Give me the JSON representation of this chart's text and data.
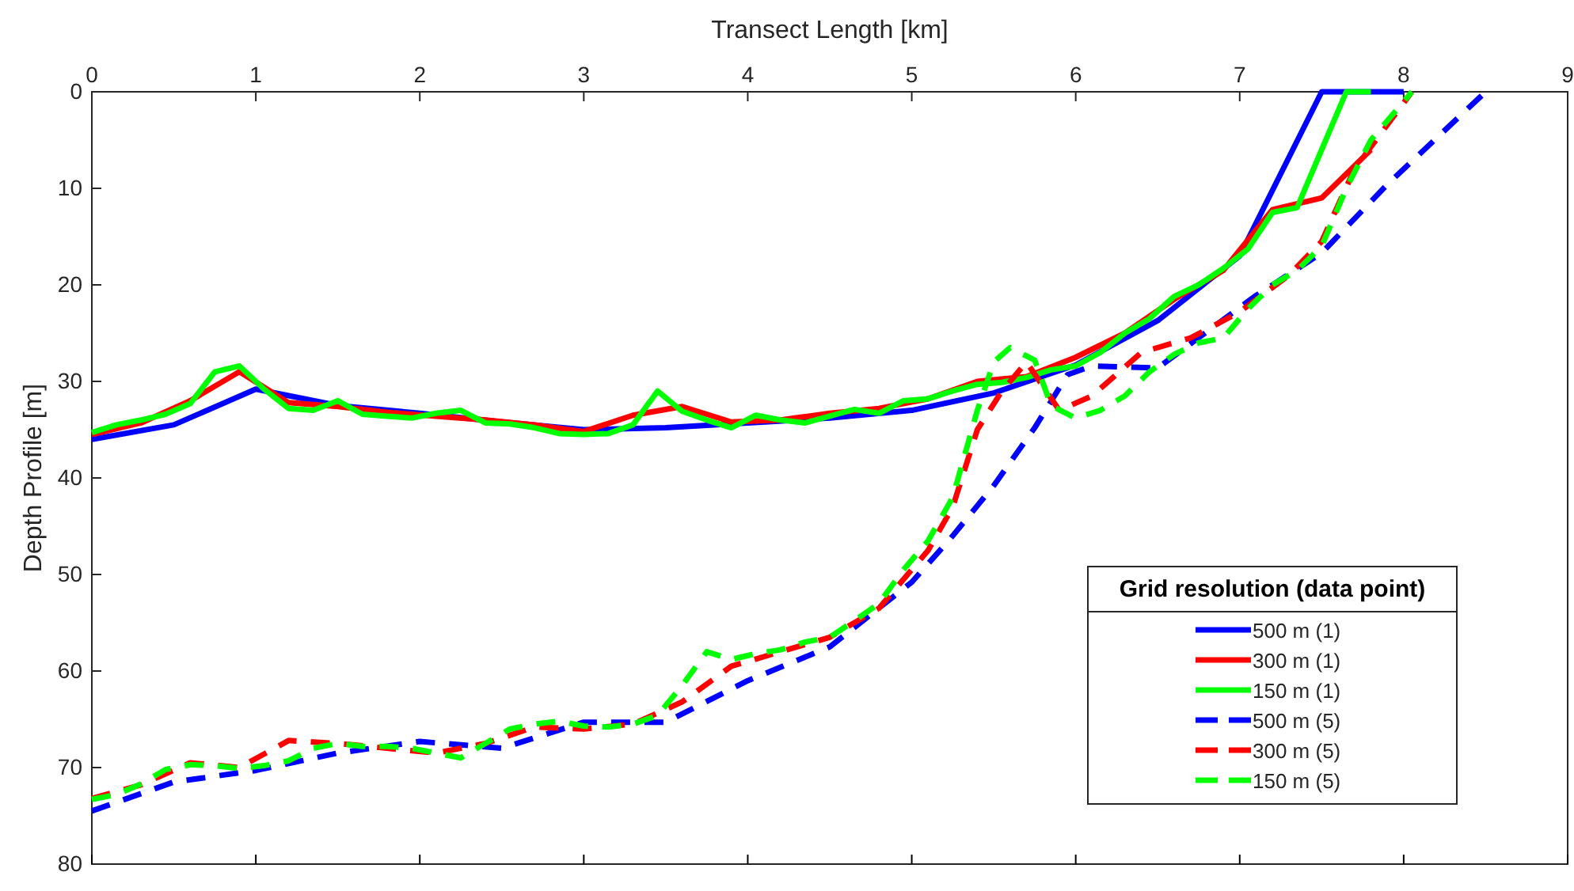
{
  "chart_data": {
    "type": "line",
    "xlabel": "Transect Length [km]",
    "ylabel": "Depth Profile [m]",
    "legend_title": "Grid resolution (data point)",
    "legend": "bottom right",
    "grid": false,
    "xlim": [
      0,
      9
    ],
    "xticks": [
      0,
      1,
      2,
      3,
      4,
      5,
      6,
      7,
      8,
      9
    ],
    "ylim": [
      80,
      0
    ],
    "yticks": [
      0,
      10,
      20,
      30,
      40,
      50,
      60,
      70,
      80
    ],
    "series": [
      {
        "name": "500 m (1)",
        "color": "#0000ff",
        "line_style": "solid",
        "x": [
          0,
          0.5,
          1,
          1.5,
          2,
          2.5,
          3,
          3.5,
          4,
          4.5,
          5,
          5.5,
          6,
          6.5,
          7,
          7.5,
          8
        ],
        "values": [
          36,
          34.5,
          30.8,
          32.5,
          33.3,
          34.2,
          35,
          34.8,
          34.3,
          33.8,
          33,
          31.2,
          28.3,
          23.7,
          17,
          0,
          0
        ]
      },
      {
        "name": "300 m (1)",
        "color": "#ff0000",
        "line_style": "solid",
        "x": [
          0,
          0.3,
          0.6,
          0.9,
          1.2,
          1.5,
          1.8,
          2.1,
          2.4,
          2.7,
          3,
          3.3,
          3.6,
          3.9,
          4.2,
          4.5,
          4.8,
          5.1,
          5.4,
          5.7,
          6,
          6.3,
          6.6,
          6.9,
          7.2,
          7.5,
          7.8
        ],
        "values": [
          35.5,
          34.3,
          32,
          29,
          32.2,
          32.6,
          33.2,
          33.6,
          34,
          34.5,
          35.2,
          33.5,
          32.6,
          34.2,
          34,
          33.3,
          32.8,
          31.8,
          30,
          29.5,
          27.5,
          25,
          21.5,
          18.5,
          12.2,
          11,
          6
        ]
      },
      {
        "name": "150 m (1)",
        "color": "#00ff00",
        "line_style": "solid",
        "x": [
          0,
          0.15,
          0.3,
          0.45,
          0.6,
          0.75,
          0.9,
          1.05,
          1.2,
          1.35,
          1.5,
          1.65,
          1.8,
          1.95,
          2.1,
          2.25,
          2.4,
          2.55,
          2.7,
          2.85,
          3,
          3.15,
          3.3,
          3.45,
          3.6,
          3.75,
          3.9,
          4.05,
          4.2,
          4.35,
          4.5,
          4.65,
          4.8,
          4.95,
          5.1,
          5.25,
          5.4,
          5.55,
          5.7,
          5.85,
          6,
          6.15,
          6.3,
          6.45,
          6.6,
          6.75,
          6.9,
          7.05,
          7.2,
          7.35,
          7.5,
          7.65,
          7.8
        ],
        "values": [
          35.3,
          34.5,
          34,
          33.4,
          32.3,
          29,
          28.4,
          30.8,
          32.8,
          33,
          32,
          33.4,
          33.6,
          33.8,
          33.3,
          33,
          34.3,
          34.4,
          34.8,
          35.4,
          35.5,
          35.4,
          34.5,
          31,
          33.1,
          34,
          34.8,
          33.5,
          34,
          34.3,
          33.6,
          32.9,
          33.3,
          32,
          31.8,
          31,
          30.3,
          30.1,
          29.6,
          28.8,
          28.4,
          27,
          25,
          23.5,
          21.2,
          20,
          18.3,
          16.3,
          12.5,
          12,
          6,
          0,
          0
        ]
      },
      {
        "name": "500 m (5)",
        "color": "#0000ff",
        "line_style": "dashed",
        "x": [
          0,
          0.5,
          1,
          1.5,
          2,
          2.5,
          3,
          3.5,
          4,
          4.5,
          5,
          5.24,
          5.5,
          5.75,
          5.95,
          6.1,
          6.5,
          7.1,
          7.5,
          7.9,
          8.5
        ],
        "values": [
          74.5,
          71.5,
          70.3,
          68.5,
          67.3,
          68,
          65.3,
          65.3,
          61,
          57.5,
          50.8,
          46.2,
          40.8,
          34.8,
          29.3,
          28.4,
          28.6,
          21.1,
          16.7,
          9.6,
          0
        ]
      },
      {
        "name": "300 m (5)",
        "color": "#ff0000",
        "line_style": "dashed",
        "x": [
          0,
          0.3,
          0.6,
          0.9,
          1.2,
          1.5,
          1.8,
          2.1,
          2.4,
          2.7,
          3,
          3.3,
          3.6,
          3.9,
          4.2,
          4.5,
          4.8,
          5.1,
          5.25,
          5.4,
          5.55,
          5.7,
          5.9,
          6.1,
          6.4,
          6.7,
          7,
          7.3,
          7.5,
          7.7,
          8.05
        ],
        "values": [
          73.2,
          71.8,
          69.5,
          70,
          67.2,
          67.5,
          68,
          68.5,
          67.5,
          65.8,
          66,
          65.5,
          63.2,
          59.5,
          58,
          56.5,
          53.5,
          47.5,
          43,
          35,
          31,
          28,
          33,
          31.5,
          27,
          25.5,
          22.8,
          19,
          15.5,
          8,
          0
        ]
      },
      {
        "name": "150 m (5)",
        "color": "#00ff00",
        "line_style": "dashed",
        "x": [
          0,
          0.15,
          0.3,
          0.45,
          0.6,
          0.75,
          0.9,
          1.05,
          1.2,
          1.35,
          1.5,
          1.65,
          1.8,
          1.95,
          2.1,
          2.25,
          2.4,
          2.55,
          2.7,
          2.85,
          3,
          3.15,
          3.3,
          3.45,
          3.6,
          3.75,
          3.9,
          4.05,
          4.2,
          4.35,
          4.5,
          4.65,
          4.8,
          4.95,
          5.1,
          5.25,
          5.4,
          5.5,
          5.6,
          5.75,
          5.85,
          6,
          6.15,
          6.3,
          6.45,
          6.6,
          6.75,
          6.9,
          7.05,
          7.2,
          7.35,
          7.5,
          7.65,
          7.8,
          8.05
        ],
        "values": [
          73.3,
          72.8,
          71.7,
          70.2,
          69.7,
          69.8,
          70.1,
          69.8,
          69.3,
          68,
          67.5,
          67.8,
          67.8,
          68,
          68.5,
          69,
          67.5,
          66,
          65.5,
          65.2,
          65.7,
          65.8,
          65.5,
          64.6,
          61.5,
          58,
          58.8,
          58.2,
          57.8,
          57,
          56.5,
          54.8,
          53,
          49.5,
          46.5,
          42,
          33,
          28,
          26.5,
          27.8,
          32.5,
          33.8,
          33,
          31.5,
          29,
          27.2,
          26,
          25.5,
          22.5,
          20,
          18.5,
          16,
          10,
          5,
          0
        ]
      }
    ]
  }
}
